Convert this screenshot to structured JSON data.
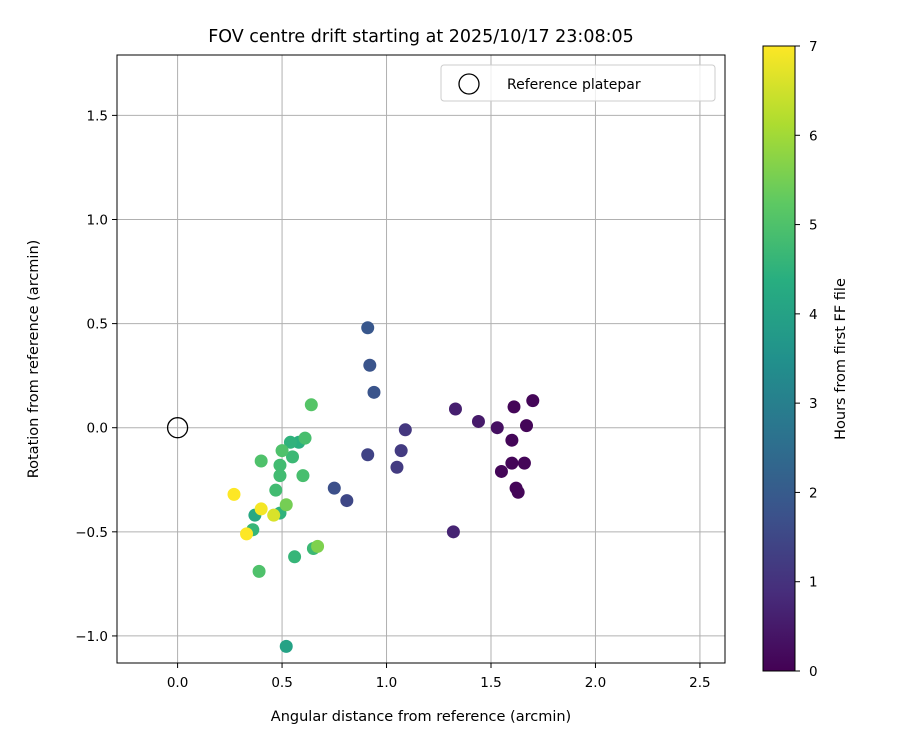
{
  "chart_data": {
    "type": "scatter",
    "title": "FOV centre drift starting at 2025/10/17 23:08:05",
    "xlabel": "Angular distance from reference (arcmin)",
    "ylabel": "Rotation from reference (arcmin)",
    "xlim": [
      -0.29,
      2.62
    ],
    "ylim": [
      -1.13,
      1.79
    ],
    "xticks": [
      0.0,
      0.5,
      1.0,
      1.5,
      2.0,
      2.5
    ],
    "xtick_labels": [
      "0.0",
      "0.5",
      "1.0",
      "1.5",
      "2.0",
      "2.5"
    ],
    "yticks": [
      -1.0,
      -0.5,
      0.0,
      0.5,
      1.0,
      1.5
    ],
    "ytick_labels": [
      "−1.0",
      "−0.5",
      "0.0",
      "0.5",
      "1.0",
      "1.5"
    ],
    "grid": true,
    "legend": {
      "position": "upper right",
      "label": "Reference platepar",
      "marker": "open-circle"
    },
    "reference_point": {
      "x": 0.0,
      "y": 0.0
    },
    "colorbar": {
      "label": "Hours from first FF file",
      "colormap": "viridis",
      "range": [
        0,
        7
      ],
      "ticks": [
        0,
        1,
        2,
        3,
        4,
        5,
        6,
        7
      ],
      "tick_labels": [
        "0",
        "1",
        "2",
        "3",
        "4",
        "5",
        "6",
        "7"
      ]
    },
    "points": [
      {
        "x": 1.7,
        "y": 0.13,
        "c": 0.1
      },
      {
        "x": 1.61,
        "y": 0.1,
        "c": 0.1
      },
      {
        "x": 1.67,
        "y": 0.01,
        "c": 0.1
      },
      {
        "x": 1.6,
        "y": -0.06,
        "c": 0.1
      },
      {
        "x": 1.6,
        "y": -0.17,
        "c": 0.1
      },
      {
        "x": 1.66,
        "y": -0.17,
        "c": 0.1
      },
      {
        "x": 1.55,
        "y": -0.21,
        "c": 0.1
      },
      {
        "x": 1.62,
        "y": -0.29,
        "c": 0.1
      },
      {
        "x": 1.63,
        "y": -0.31,
        "c": 0.1
      },
      {
        "x": 1.53,
        "y": 0.0,
        "c": 0.3
      },
      {
        "x": 1.44,
        "y": 0.03,
        "c": 0.5
      },
      {
        "x": 1.33,
        "y": 0.09,
        "c": 0.6
      },
      {
        "x": 1.32,
        "y": -0.5,
        "c": 0.7
      },
      {
        "x": 1.09,
        "y": -0.01,
        "c": 1.1
      },
      {
        "x": 1.07,
        "y": -0.11,
        "c": 1.2
      },
      {
        "x": 1.05,
        "y": -0.19,
        "c": 1.2
      },
      {
        "x": 0.91,
        "y": -0.13,
        "c": 1.4
      },
      {
        "x": 0.81,
        "y": -0.35,
        "c": 1.5
      },
      {
        "x": 0.75,
        "y": -0.29,
        "c": 1.7
      },
      {
        "x": 0.94,
        "y": 0.17,
        "c": 1.8
      },
      {
        "x": 0.92,
        "y": 0.3,
        "c": 1.8
      },
      {
        "x": 0.91,
        "y": 0.48,
        "c": 1.9
      },
      {
        "x": 0.52,
        "y": -1.05,
        "c": 4.0
      },
      {
        "x": 0.37,
        "y": -0.42,
        "c": 4.2
      },
      {
        "x": 0.58,
        "y": -0.07,
        "c": 4.4
      },
      {
        "x": 0.54,
        "y": -0.07,
        "c": 4.5
      },
      {
        "x": 0.49,
        "y": -0.41,
        "c": 4.5
      },
      {
        "x": 0.36,
        "y": -0.49,
        "c": 4.6
      },
      {
        "x": 0.56,
        "y": -0.62,
        "c": 4.6
      },
      {
        "x": 0.65,
        "y": -0.58,
        "c": 4.7
      },
      {
        "x": 0.55,
        "y": -0.14,
        "c": 4.7
      },
      {
        "x": 0.47,
        "y": -0.3,
        "c": 4.8
      },
      {
        "x": 0.49,
        "y": -0.23,
        "c": 4.8
      },
      {
        "x": 0.49,
        "y": -0.18,
        "c": 4.8
      },
      {
        "x": 0.6,
        "y": -0.23,
        "c": 4.9
      },
      {
        "x": 0.61,
        "y": -0.05,
        "c": 4.9
      },
      {
        "x": 0.5,
        "y": -0.11,
        "c": 5.0
      },
      {
        "x": 0.4,
        "y": -0.16,
        "c": 5.0
      },
      {
        "x": 0.39,
        "y": -0.69,
        "c": 5.0
      },
      {
        "x": 0.64,
        "y": 0.11,
        "c": 5.1
      },
      {
        "x": 0.52,
        "y": -0.37,
        "c": 5.5
      },
      {
        "x": 0.67,
        "y": -0.57,
        "c": 5.6
      },
      {
        "x": 0.46,
        "y": -0.42,
        "c": 6.6
      },
      {
        "x": 0.4,
        "y": -0.39,
        "c": 6.9
      },
      {
        "x": 0.27,
        "y": -0.32,
        "c": 7.0
      },
      {
        "x": 0.33,
        "y": -0.51,
        "c": 7.0
      }
    ]
  }
}
